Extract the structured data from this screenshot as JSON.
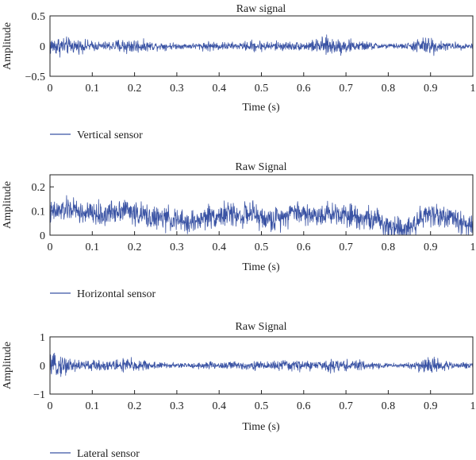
{
  "chart_data": [
    {
      "type": "line",
      "title": "Raw signal",
      "xlabel": "Time (s)",
      "ylabel": "Amplitude",
      "xlim": [
        0,
        1
      ],
      "ylim": [
        -0.5,
        0.5
      ],
      "xticks": [
        "0",
        "0.1",
        "0.2",
        "0.3",
        "0.4",
        "0.5",
        "0.6",
        "0.7",
        "0.8",
        "0.9",
        "1"
      ],
      "xtick_values": [
        0,
        0.1,
        0.2,
        0.3,
        0.4,
        0.5,
        0.6,
        0.7,
        0.8,
        0.9,
        1
      ],
      "yticks": [
        "−0.5",
        "0",
        "0.5"
      ],
      "ytick_values": [
        -0.5,
        0,
        0.5
      ],
      "grid": false,
      "legend_position": "below",
      "series": [
        {
          "name": "Vertical sensor",
          "color": "#3a53a4",
          "x": [
            0,
            0.025,
            0.05,
            0.075,
            0.1,
            0.125,
            0.15,
            0.175,
            0.2,
            0.225,
            0.25,
            0.275,
            0.3,
            0.325,
            0.35,
            0.375,
            0.4,
            0.425,
            0.45,
            0.475,
            0.5,
            0.525,
            0.55,
            0.575,
            0.6,
            0.625,
            0.65,
            0.675,
            0.7,
            0.725,
            0.75,
            0.775,
            0.8,
            0.825,
            0.85,
            0.875,
            0.9,
            0.925,
            0.95,
            0.975,
            1
          ],
          "envelope": [
            0.22,
            0.24,
            0.18,
            0.15,
            0.12,
            0.1,
            0.13,
            0.2,
            0.18,
            0.12,
            0.1,
            0.09,
            0.07,
            0.06,
            0.08,
            0.12,
            0.1,
            0.09,
            0.08,
            0.14,
            0.13,
            0.11,
            0.12,
            0.1,
            0.1,
            0.15,
            0.22,
            0.2,
            0.18,
            0.12,
            0.1,
            0.08,
            0.06,
            0.06,
            0.08,
            0.2,
            0.22,
            0.12,
            0.08,
            0.08,
            0.07
          ]
        }
      ]
    },
    {
      "type": "line",
      "title": "Raw Signal",
      "xlabel": "Time (s)",
      "ylabel": "Amplitude",
      "xlim": [
        0,
        1
      ],
      "ylim": [
        0,
        0.25
      ],
      "xticks": [
        "0",
        "0.1",
        "0.2",
        "0.3",
        "0.4",
        "0.5",
        "0.6",
        "0.7",
        "0.8",
        "0.9",
        "1"
      ],
      "xtick_values": [
        0,
        0.1,
        0.2,
        0.3,
        0.4,
        0.5,
        0.6,
        0.7,
        0.8,
        0.9,
        1
      ],
      "yticks": [
        "0",
        "0.1",
        "0.2"
      ],
      "ytick_values": [
        0,
        0.1,
        0.2
      ],
      "grid": false,
      "legend_position": "below",
      "series": [
        {
          "name": "Horizontal sensor",
          "color": "#3a53a4",
          "x": [
            0,
            0.025,
            0.05,
            0.075,
            0.1,
            0.125,
            0.15,
            0.175,
            0.2,
            0.225,
            0.25,
            0.275,
            0.3,
            0.325,
            0.35,
            0.375,
            0.4,
            0.425,
            0.45,
            0.475,
            0.5,
            0.525,
            0.55,
            0.575,
            0.6,
            0.625,
            0.65,
            0.675,
            0.7,
            0.725,
            0.75,
            0.775,
            0.8,
            0.825,
            0.85,
            0.875,
            0.9,
            0.925,
            0.95,
            0.975,
            1
          ],
          "mean": [
            0.09,
            0.1,
            0.11,
            0.09,
            0.09,
            0.08,
            0.1,
            0.11,
            0.09,
            0.08,
            0.07,
            0.07,
            0.06,
            0.05,
            0.06,
            0.08,
            0.08,
            0.09,
            0.08,
            0.09,
            0.07,
            0.06,
            0.08,
            0.1,
            0.09,
            0.08,
            0.09,
            0.09,
            0.09,
            0.08,
            0.07,
            0.06,
            0.04,
            0.03,
            0.03,
            0.07,
            0.09,
            0.08,
            0.07,
            0.05,
            0.04
          ]
        }
      ]
    },
    {
      "type": "line",
      "title": "Raw Signal",
      "xlabel": "Time (s)",
      "ylabel": "Amplitude",
      "xlim": [
        0,
        1
      ],
      "ylim": [
        -1,
        1
      ],
      "xticks": [
        "0",
        "0.1",
        "0.2",
        "0.3",
        "0.4",
        "0.5",
        "0.6",
        "0.7",
        "0.8",
        "0.9",
        "1"
      ],
      "xtick_values": [
        0,
        0.1,
        0.2,
        0.3,
        0.4,
        0.5,
        0.6,
        0.7,
        0.8,
        0.9,
        1
      ],
      "yticks": [
        "−1",
        "0",
        "1"
      ],
      "ytick_values": [
        -1,
        0,
        1
      ],
      "grid": false,
      "legend_position": "below",
      "series": [
        {
          "name": "Lateral sensor",
          "color": "#3a53a4",
          "x": [
            0,
            0.025,
            0.05,
            0.075,
            0.1,
            0.125,
            0.15,
            0.175,
            0.2,
            0.225,
            0.25,
            0.275,
            0.3,
            0.325,
            0.35,
            0.375,
            0.4,
            0.425,
            0.45,
            0.475,
            0.5,
            0.525,
            0.55,
            0.575,
            0.6,
            0.625,
            0.65,
            0.675,
            0.7,
            0.725,
            0.75,
            0.775,
            0.8,
            0.825,
            0.85,
            0.875,
            0.9,
            0.925,
            0.95,
            0.975,
            1
          ],
          "envelope": [
            0.45,
            0.55,
            0.4,
            0.3,
            0.25,
            0.25,
            0.3,
            0.4,
            0.35,
            0.25,
            0.18,
            0.15,
            0.12,
            0.12,
            0.15,
            0.2,
            0.2,
            0.22,
            0.2,
            0.22,
            0.2,
            0.22,
            0.28,
            0.28,
            0.25,
            0.25,
            0.28,
            0.3,
            0.3,
            0.25,
            0.2,
            0.15,
            0.12,
            0.12,
            0.15,
            0.35,
            0.45,
            0.3,
            0.15,
            0.15,
            0.12
          ]
        }
      ]
    }
  ]
}
